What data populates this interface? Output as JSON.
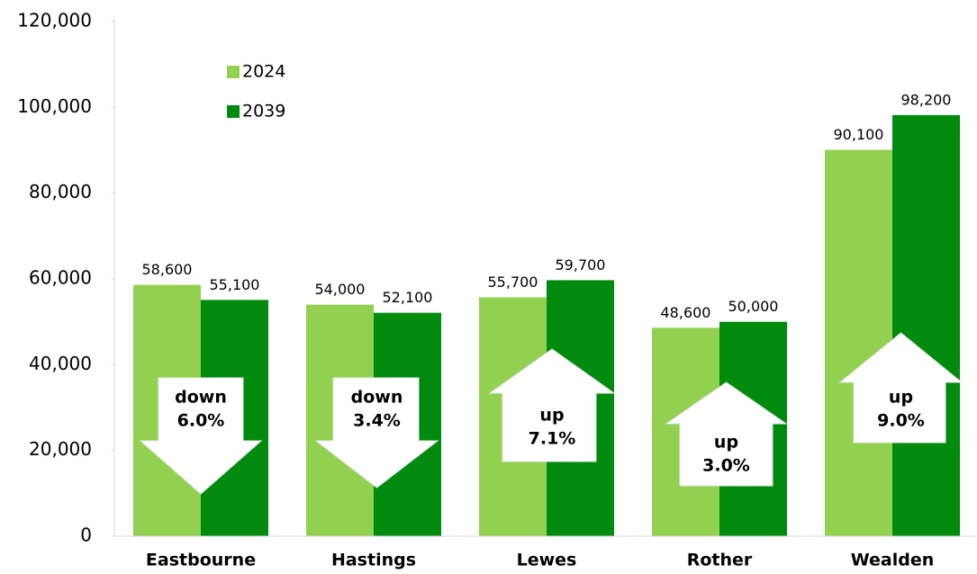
{
  "chart_data": {
    "type": "bar",
    "categories": [
      "Eastbourne",
      "Hastings",
      "Lewes",
      "Rother",
      "Wealden"
    ],
    "series": [
      {
        "name": "2024",
        "color": "#92d050",
        "values": [
          58600,
          54000,
          55700,
          48600,
          90100
        ],
        "value_labels": [
          "58,600",
          "54,000",
          "55,700",
          "48,600",
          "90,100"
        ]
      },
      {
        "name": "2039",
        "color": "#008a0e",
        "values": [
          55100,
          52100,
          59700,
          50000,
          98200
        ],
        "value_labels": [
          "55,100",
          "52,100",
          "59,700",
          "50,000",
          "98,200"
        ]
      }
    ],
    "ylim": [
      0,
      120000
    ],
    "yticks": [
      0,
      {
        "value": 20000,
        "label": "20,000"
      },
      {
        "value": 40000,
        "label": "40,000"
      },
      {
        "value": 60000,
        "label": "60,000"
      },
      {
        "value": 80000,
        "label": "80,000"
      },
      {
        "value": 100000,
        "label": "100,000"
      },
      {
        "value": 120000,
        "label": "120,000"
      }
    ],
    "grid": false,
    "legend": "top-left",
    "annotations": [
      {
        "arrow": "down",
        "text": [
          "down",
          "6.0%"
        ]
      },
      {
        "arrow": "down",
        "text": [
          "down",
          "3.4%"
        ]
      },
      {
        "arrow": "up",
        "text": [
          "up",
          "7.1%"
        ]
      },
      {
        "arrow": "up",
        "text": [
          "up",
          "3.0%"
        ]
      },
      {
        "arrow": "up",
        "text": [
          "up",
          "9.0%"
        ]
      }
    ]
  }
}
